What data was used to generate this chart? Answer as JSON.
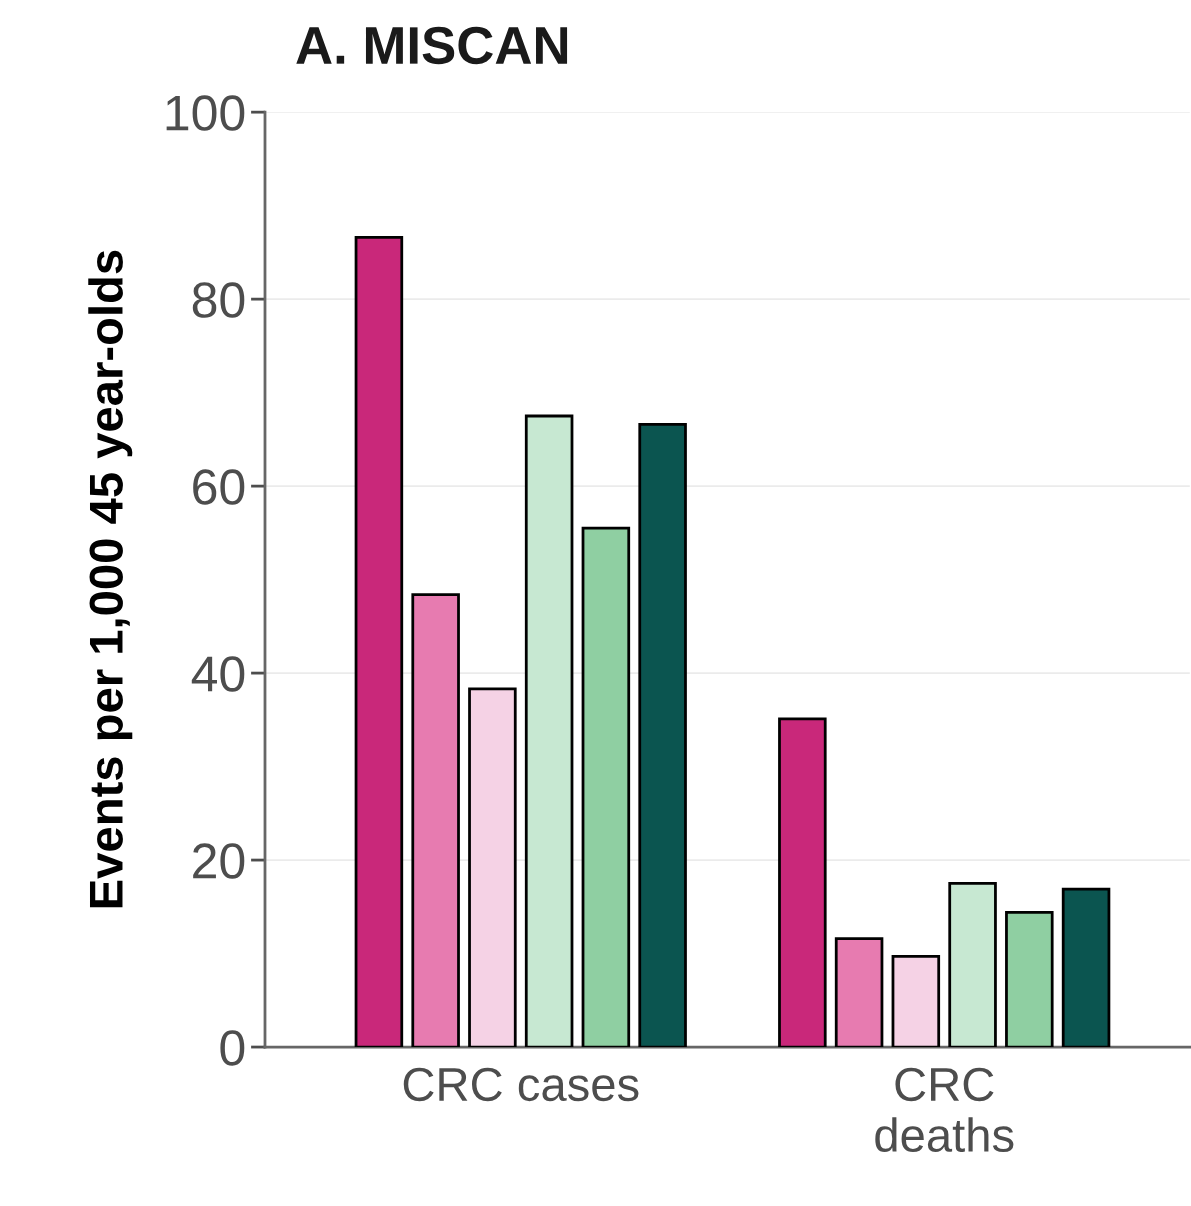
{
  "chart_data": {
    "type": "bar",
    "title": "A. MISCAN",
    "ylabel": "Events per 1,000 45 year-olds",
    "categories": [
      "CRC cases",
      "CRC\ndeaths"
    ],
    "series": [
      {
        "color": "#c9287a",
        "values": [
          86.6,
          35.1
        ]
      },
      {
        "color": "#e77bb0",
        "values": [
          48.4,
          11.6
        ]
      },
      {
        "color": "#f5d2e5",
        "values": [
          38.3,
          9.7
        ]
      },
      {
        "color": "#c7e8d2",
        "values": [
          67.5,
          17.5
        ]
      },
      {
        "color": "#8fcfa2",
        "values": [
          55.5,
          14.4
        ]
      },
      {
        "color": "#0b5550",
        "values": [
          66.6,
          16.9
        ]
      }
    ],
    "ylim": [
      0,
      100
    ],
    "yticks": [
      0,
      20,
      40,
      60,
      80,
      100
    ],
    "grid": "y",
    "legend": false
  }
}
